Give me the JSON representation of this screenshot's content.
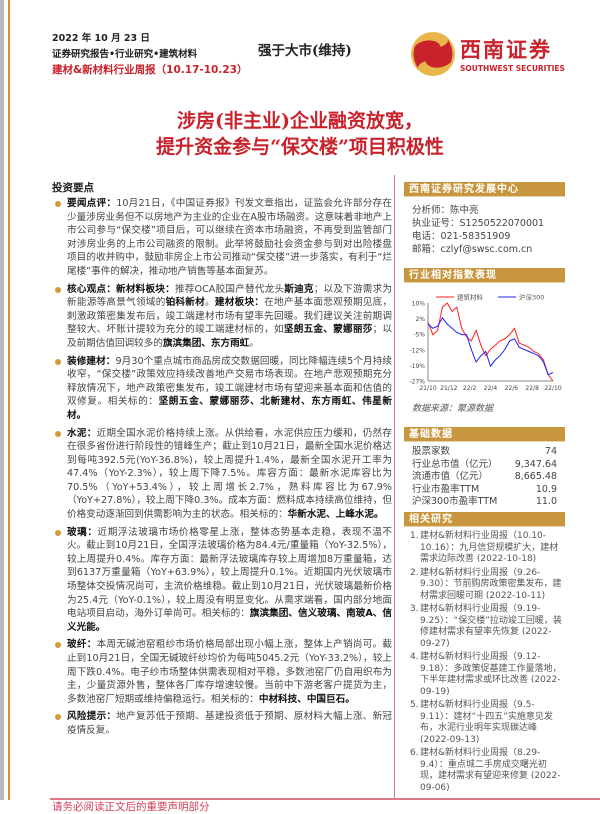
{
  "header": {
    "date": "2022 年 10 月 23 日",
    "category": "证券研究报告•行业研究•建筑材料",
    "report_name": "建材&新材料行业周报（10.17-10.23）",
    "rating": "强于大市(维持)",
    "logo_cn": "西南证券",
    "logo_en": "SOUTHWEST SECURITIES"
  },
  "title": {
    "line1": "涉房(非主业)企业融资放宽，",
    "line2": "提升资金参与“保交楼”项目积极性"
  },
  "investment": {
    "heading": "投资要点",
    "paragraphs": [
      [
        {
          "b": true,
          "t": "要闻点评："
        },
        {
          "t": "10月21日，《中国证券报》刊发文章指出，证监会允许部分存在少量涉房业务但不以房地产为主业的企业在A股市场融资。这意味着非地产上市公司参与“保交楼”项目后，可以继续在资本市场融资，不再受到监管部门对涉房业务的上市公司融资的限制。此举将鼓励社会资金参与到对出险楼盘项目的收并购中，鼓励非房企上市公司推动“保交楼”进一步落实，有利于“烂尾楼”事件的解决，推动地产销售等基本面复苏。"
        }
      ],
      [
        {
          "b": true,
          "t": "核心观点：新材料板块："
        },
        {
          "t": "推荐OCA胶国产替代龙头"
        },
        {
          "b": true,
          "t": "斯迪克"
        },
        {
          "t": "；以及下游需求为新能源等高景气领域的"
        },
        {
          "b": true,
          "t": "铂科新材"
        },
        {
          "t": "。"
        },
        {
          "b": true,
          "t": "建材板块："
        },
        {
          "t": "在地产基本面悲观预期见底，刺激政策密集发布后，竣工端建材市场有望率先回暖。我们建议关注前期调整较大、坏账计提较为充分的竣工端建材标的，如"
        },
        {
          "b": true,
          "t": "坚朗五金、蒙娜丽莎"
        },
        {
          "t": "；以及前期估值回调较多的"
        },
        {
          "b": true,
          "t": "旗滨集团、东方雨虹"
        },
        {
          "t": "。"
        }
      ],
      [
        {
          "b": true,
          "t": "装修建材："
        },
        {
          "t": "9月30个重点城市商品房成交数据回暖，同比降幅连续5个月持续收窄，“保交楼”政策效应持续改善地产交易市场表现。在地产悲观预期充分释放情况下，地产政策密集发布，竣工端建材市场有望迎来基本面和估值的双修复。相关标的："
        },
        {
          "b": true,
          "t": "坚朗五金、蒙娜丽莎、北新建材、东方雨虹、伟星新材。"
        }
      ],
      [
        {
          "b": true,
          "t": "水泥："
        },
        {
          "t": "近期全国水泥价格持续上涨。从供给看，水泥供应压力缓和，仍然存在很多省份进行阶段性的错峰生产；截止到10月21日，最新全国水泥价格达到每吨392.5元(YoY-36.8%)，较上周提升1.4%，最新全国水泥开工率为47.4%（YoY-2.3%），较上周下降7.5%。库容方面：最新水泥库容比为70.5%（YoY+53.4%），较上周增长2.7%，熟料库容比为67.9%（YoY+27.8%），较上周下降0.3%。成本方面：燃料成本持续高位维持，但价格变动逐渐回到供需影响为主的状态。相关标的："
        },
        {
          "b": true,
          "t": "华新水泥、上峰水泥。"
        }
      ],
      [
        {
          "b": true,
          "t": "玻璃："
        },
        {
          "t": "近期浮法玻璃市场价格零星上涨，整体态势基本走稳，表现不温不火。截止到10月21日，全国浮法玻璃价格为84.4元/重量箱（YoY-32.5%），较上周提升0.4%。库存方面：最新浮法玻璃库存较上周增加8万重量箱，达到6137万重量箱（YoY+63.9%），较上周提升0.1%。近期国内光伏玻璃市场整体交投情况尚可，主流价格维稳。截止到10月21日，光伏玻璃最新价格为25.4元（YoY-0.1%），较上周没有明显变化。从需求端看，国内部分地面电站项目启动，海外订单尚可。相关标的："
        },
        {
          "b": true,
          "t": "旗滨集团、信义玻璃、南玻A、信义光能。"
        }
      ],
      [
        {
          "b": true,
          "t": "玻纤："
        },
        {
          "t": "本周无碱池窑粗纱市场价格局部出现小幅上涨，整体上产销尚可。截止到10月21日，全国无碱玻纤纱均价为每吨5045.2元（YoY-33.2%），较上周下跌0.4%。电子纱市场整体供需表现相对平稳，多数池窑厂仍自用织布为主，少量货源外售，整体各厂库存增速较慢。当前中下游老客户提货为主，多数池窑厂短期或维持偏稳运行。相关标的："
        },
        {
          "b": true,
          "t": "中材科技、中国巨石。"
        }
      ],
      [
        {
          "b": true,
          "t": "风险提示："
        },
        {
          "t": "地产复苏低于预期、基建投资低于预期、原材料大幅上涨、新冠疫情反复。"
        }
      ]
    ]
  },
  "sidebar": {
    "center_heading": "西南证券研究发展中心",
    "analyst": "分析师：陈中亮",
    "license": "执业证号：S1250522070001",
    "phone": "电话：021-58351909",
    "email": "邮箱：czlyf@swsc.com.cn",
    "index_heading": "行业相对指数表现",
    "chart_source": "数据来源：聚源数据",
    "basic_heading": "基础数据",
    "basic_rows": [
      {
        "label": "股票家数",
        "value": "74"
      },
      {
        "label": "行业总市值（亿元）",
        "value": "9,347.64"
      },
      {
        "label": "流通市值（亿元）",
        "value": "8,665.48"
      },
      {
        "label": "行业市盈率TTM",
        "value": "10.9"
      },
      {
        "label": "沪深300市盈率TTM",
        "value": "11.0"
      }
    ],
    "related_heading": "相关研究",
    "related": [
      {
        "num": "1.",
        "text": "建材&新材料行业周报（10.10-10.16）：九月信贷规模扩大，建材需求边际改善 (2022-10-18)"
      },
      {
        "num": "2.",
        "text": "建材&新材料行业周报（9.26-9.30）：节前购房政策密集发布，建材需求回暖可期 (2022-10-11)"
      },
      {
        "num": "3.",
        "text": "建材&新材料行业周报（9.19-9.25）：“保交楼”拉动竣工回暖，装修建材需求有望率先恢复 (2022-09-27)"
      },
      {
        "num": "4.",
        "text": "建材&新材料行业周报（9.12-9.18）：多政策促基建工作量落地，下半年建材需求或环比改善 (2022-09-19)"
      },
      {
        "num": "5.",
        "text": "建材&新材料行业周报（9.5-9.11）：建材“十四五”实施意见发布，水泥行业明年实现碳达峰 (2022-09-13)"
      },
      {
        "num": "6.",
        "text": "建材&新材料行业周报（8.29-9.4）：重点城二手房成交曙光初现，建材需求有望迎来修复 (2022-09-06)"
      }
    ]
  },
  "footer": {
    "text": "请务必阅读正文后的重要声明部分"
  },
  "colors": {
    "accent_red": "#c8232c",
    "gold": "#c8963e",
    "series_red": "#ff2020",
    "series_blue": "#2020ff"
  },
  "chart_data": {
    "type": "line",
    "x_ticks": [
      "21/10",
      "21/12",
      "22/2",
      "22/4",
      "22/6",
      "22/8",
      "22/10"
    ],
    "y_ticks": [
      "10%",
      "2%",
      "-5%",
      "-12%",
      "-19%",
      "-27%"
    ],
    "ylim": [
      -27,
      10
    ],
    "x": [
      "2021-10-22",
      "2021-11-05",
      "2021-11-19",
      "2021-12-03",
      "2021-12-17",
      "2021-12-31",
      "2022-01-14",
      "2022-01-28",
      "2022-02-11",
      "2022-02-25",
      "2022-03-11",
      "2022-03-25",
      "2022-04-08",
      "2022-04-22",
      "2022-05-06",
      "2022-05-20",
      "2022-06-03",
      "2022-06-17",
      "2022-07-01",
      "2022-07-15",
      "2022-07-29",
      "2022-08-12",
      "2022-08-26",
      "2022-09-09",
      "2022-09-23",
      "2022-10-07",
      "2022-10-21"
    ],
    "series": [
      {
        "name": "建筑材料",
        "color": "#ff2020",
        "values": [
          1,
          -5,
          -3,
          8,
          10,
          6,
          8,
          -2,
          -6,
          -8,
          -3,
          -10,
          -15,
          -12,
          -10,
          -8,
          -7,
          -5,
          -2,
          -9,
          -10,
          -11,
          -13,
          -14,
          -17,
          -24,
          -27
        ]
      },
      {
        "name": "沪深300",
        "color": "#2020ff",
        "values": [
          0,
          -2,
          -1,
          3,
          0,
          -2,
          -4,
          -5,
          -5,
          -12,
          -18,
          -15,
          -13,
          -20,
          -17,
          -15,
          -12,
          -8,
          -7,
          -11,
          -12,
          -13,
          -14,
          -15,
          -18,
          -24,
          -23
        ]
      }
    ],
    "grid": false,
    "legend": "top"
  }
}
